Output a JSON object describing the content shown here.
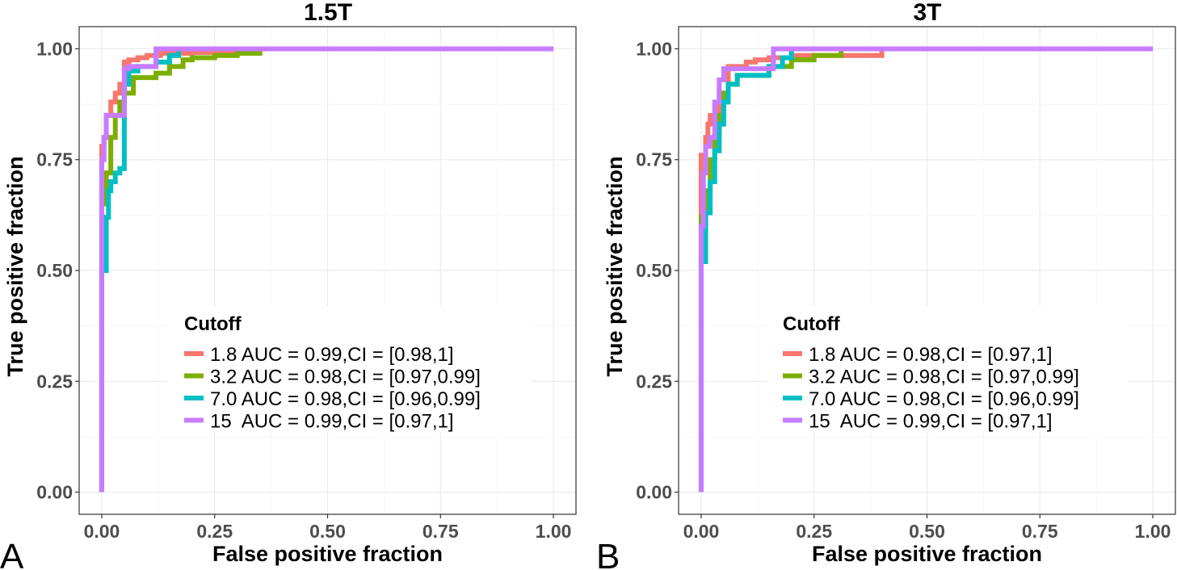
{
  "chart_data": [
    {
      "type": "line",
      "panel_label": "A",
      "title": "1.5T",
      "xlabel": "False positive fraction",
      "ylabel": "True positive fraction",
      "xlim": [
        0,
        1
      ],
      "ylim": [
        0,
        1
      ],
      "xticks": [
        "0.00",
        "0.25",
        "0.50",
        "0.75",
        "1.00"
      ],
      "yticks": [
        "0.00",
        "0.25",
        "0.50",
        "0.75",
        "1.00"
      ],
      "grid": true,
      "legend": {
        "title": "Cutoff",
        "position": "center",
        "entries": [
          "1.8 AUC = 0.99,CI = [0.98,1]",
          "3.2 AUC = 0.98,CI = [0.97,0.99]",
          "7.0 AUC = 0.98,CI = [0.96,0.99]",
          "15  AUC = 0.99,CI = [0.97,1]"
        ]
      },
      "series": [
        {
          "name": "1.8",
          "color": "#F8766D",
          "x": [
            0,
            0,
            0.005,
            0.005,
            0.01,
            0.01,
            0.02,
            0.02,
            0.03,
            0.03,
            0.04,
            0.04,
            0.05,
            0.05,
            0.06,
            0.06,
            0.08,
            0.08,
            0.1,
            0.1,
            0.13,
            0.13,
            0.2,
            0.2,
            0.25,
            0.25,
            0.35,
            0.35,
            1
          ],
          "y": [
            0,
            0.78,
            0.78,
            0.8,
            0.8,
            0.85,
            0.85,
            0.88,
            0.88,
            0.9,
            0.9,
            0.92,
            0.92,
            0.97,
            0.97,
            0.975,
            0.975,
            0.98,
            0.98,
            0.985,
            0.985,
            0.99,
            0.99,
            0.992,
            0.992,
            0.995,
            0.995,
            1,
            1
          ]
        },
        {
          "name": "3.2",
          "color": "#7CAE00",
          "x": [
            0,
            0,
            0.01,
            0.01,
            0.02,
            0.02,
            0.03,
            0.03,
            0.04,
            0.04,
            0.05,
            0.05,
            0.07,
            0.07,
            0.12,
            0.12,
            0.15,
            0.15,
            0.18,
            0.18,
            0.2,
            0.2,
            0.25,
            0.25,
            0.3,
            0.3,
            0.35,
            0.35,
            1
          ],
          "y": [
            0,
            0.65,
            0.65,
            0.72,
            0.72,
            0.8,
            0.8,
            0.85,
            0.85,
            0.88,
            0.88,
            0.9,
            0.9,
            0.935,
            0.935,
            0.945,
            0.945,
            0.96,
            0.96,
            0.975,
            0.975,
            0.98,
            0.98,
            0.985,
            0.985,
            0.99,
            0.99,
            1,
            1
          ]
        },
        {
          "name": "7.0",
          "color": "#00BFC4",
          "x": [
            0,
            0,
            0.01,
            0.01,
            0.015,
            0.015,
            0.02,
            0.02,
            0.03,
            0.03,
            0.04,
            0.04,
            0.05,
            0.05,
            0.06,
            0.06,
            0.08,
            0.08,
            0.12,
            0.12,
            0.15,
            0.15,
            0.17,
            0.17,
            1
          ],
          "y": [
            0,
            0.5,
            0.5,
            0.62,
            0.62,
            0.68,
            0.68,
            0.7,
            0.7,
            0.72,
            0.72,
            0.73,
            0.73,
            0.92,
            0.92,
            0.95,
            0.95,
            0.96,
            0.96,
            0.97,
            0.97,
            0.985,
            0.985,
            1,
            1
          ]
        },
        {
          "name": "15",
          "color": "#C77CFF",
          "x": [
            0,
            0,
            0.005,
            0.005,
            0.01,
            0.01,
            0.03,
            0.03,
            0.05,
            0.05,
            0.06,
            0.06,
            0.12,
            0.12,
            1
          ],
          "y": [
            0,
            0.75,
            0.75,
            0.8,
            0.8,
            0.85,
            0.85,
            0.85,
            0.85,
            0.955,
            0.955,
            0.96,
            0.96,
            1,
            1
          ]
        }
      ]
    },
    {
      "type": "line",
      "panel_label": "B",
      "title": "3T",
      "xlabel": "False positive fraction",
      "ylabel": "True positive fraction",
      "xlim": [
        0,
        1
      ],
      "ylim": [
        0,
        1
      ],
      "xticks": [
        "0.00",
        "0.25",
        "0.50",
        "0.75",
        "1.00"
      ],
      "yticks": [
        "0.00",
        "0.25",
        "0.50",
        "0.75",
        "1.00"
      ],
      "grid": true,
      "legend": {
        "title": "Cutoff",
        "position": "center",
        "entries": [
          "1.8 AUC = 0.98,CI = [0.97,1]",
          "3.2 AUC = 0.98,CI = [0.97,0.99]",
          "7.0 AUC = 0.98,CI = [0.96,0.99]",
          "15  AUC = 0.99,CI = [0.97,1]"
        ]
      },
      "series": [
        {
          "name": "1.8",
          "color": "#F8766D",
          "x": [
            0,
            0,
            0.01,
            0.01,
            0.015,
            0.015,
            0.02,
            0.02,
            0.04,
            0.04,
            0.06,
            0.06,
            0.1,
            0.1,
            0.12,
            0.12,
            0.15,
            0.15,
            0.2,
            0.2,
            0.4,
            0.4,
            1
          ],
          "y": [
            0,
            0.76,
            0.76,
            0.8,
            0.8,
            0.83,
            0.83,
            0.85,
            0.85,
            0.9,
            0.9,
            0.96,
            0.96,
            0.97,
            0.97,
            0.975,
            0.975,
            0.98,
            0.98,
            0.985,
            0.985,
            1,
            1
          ]
        },
        {
          "name": "3.2",
          "color": "#7CAE00",
          "x": [
            0,
            0,
            0.01,
            0.01,
            0.02,
            0.02,
            0.03,
            0.03,
            0.04,
            0.04,
            0.05,
            0.05,
            0.06,
            0.06,
            0.08,
            0.08,
            0.15,
            0.15,
            0.2,
            0.2,
            0.25,
            0.25,
            0.31,
            0.31,
            1
          ],
          "y": [
            0,
            0.62,
            0.62,
            0.68,
            0.68,
            0.75,
            0.75,
            0.8,
            0.8,
            0.85,
            0.85,
            0.9,
            0.9,
            0.92,
            0.92,
            0.94,
            0.94,
            0.96,
            0.96,
            0.975,
            0.975,
            0.985,
            0.985,
            1,
            1
          ]
        },
        {
          "name": "7.0",
          "color": "#00BFC4",
          "x": [
            0,
            0,
            0.01,
            0.01,
            0.02,
            0.02,
            0.03,
            0.03,
            0.04,
            0.04,
            0.05,
            0.05,
            0.06,
            0.06,
            0.08,
            0.08,
            0.15,
            0.15,
            0.18,
            0.18,
            0.2,
            0.2,
            1
          ],
          "y": [
            0,
            0.52,
            0.52,
            0.63,
            0.63,
            0.7,
            0.7,
            0.77,
            0.77,
            0.83,
            0.83,
            0.88,
            0.88,
            0.92,
            0.92,
            0.94,
            0.94,
            0.96,
            0.96,
            0.98,
            0.98,
            1,
            1
          ]
        },
        {
          "name": "15",
          "color": "#C77CFF",
          "x": [
            0,
            0,
            0.005,
            0.005,
            0.01,
            0.01,
            0.02,
            0.02,
            0.03,
            0.03,
            0.04,
            0.04,
            0.05,
            0.05,
            0.16,
            0.16,
            1
          ],
          "y": [
            0,
            0.6,
            0.6,
            0.72,
            0.72,
            0.78,
            0.78,
            0.8,
            0.8,
            0.88,
            0.88,
            0.93,
            0.93,
            0.955,
            0.955,
            1,
            1
          ]
        }
      ]
    }
  ]
}
